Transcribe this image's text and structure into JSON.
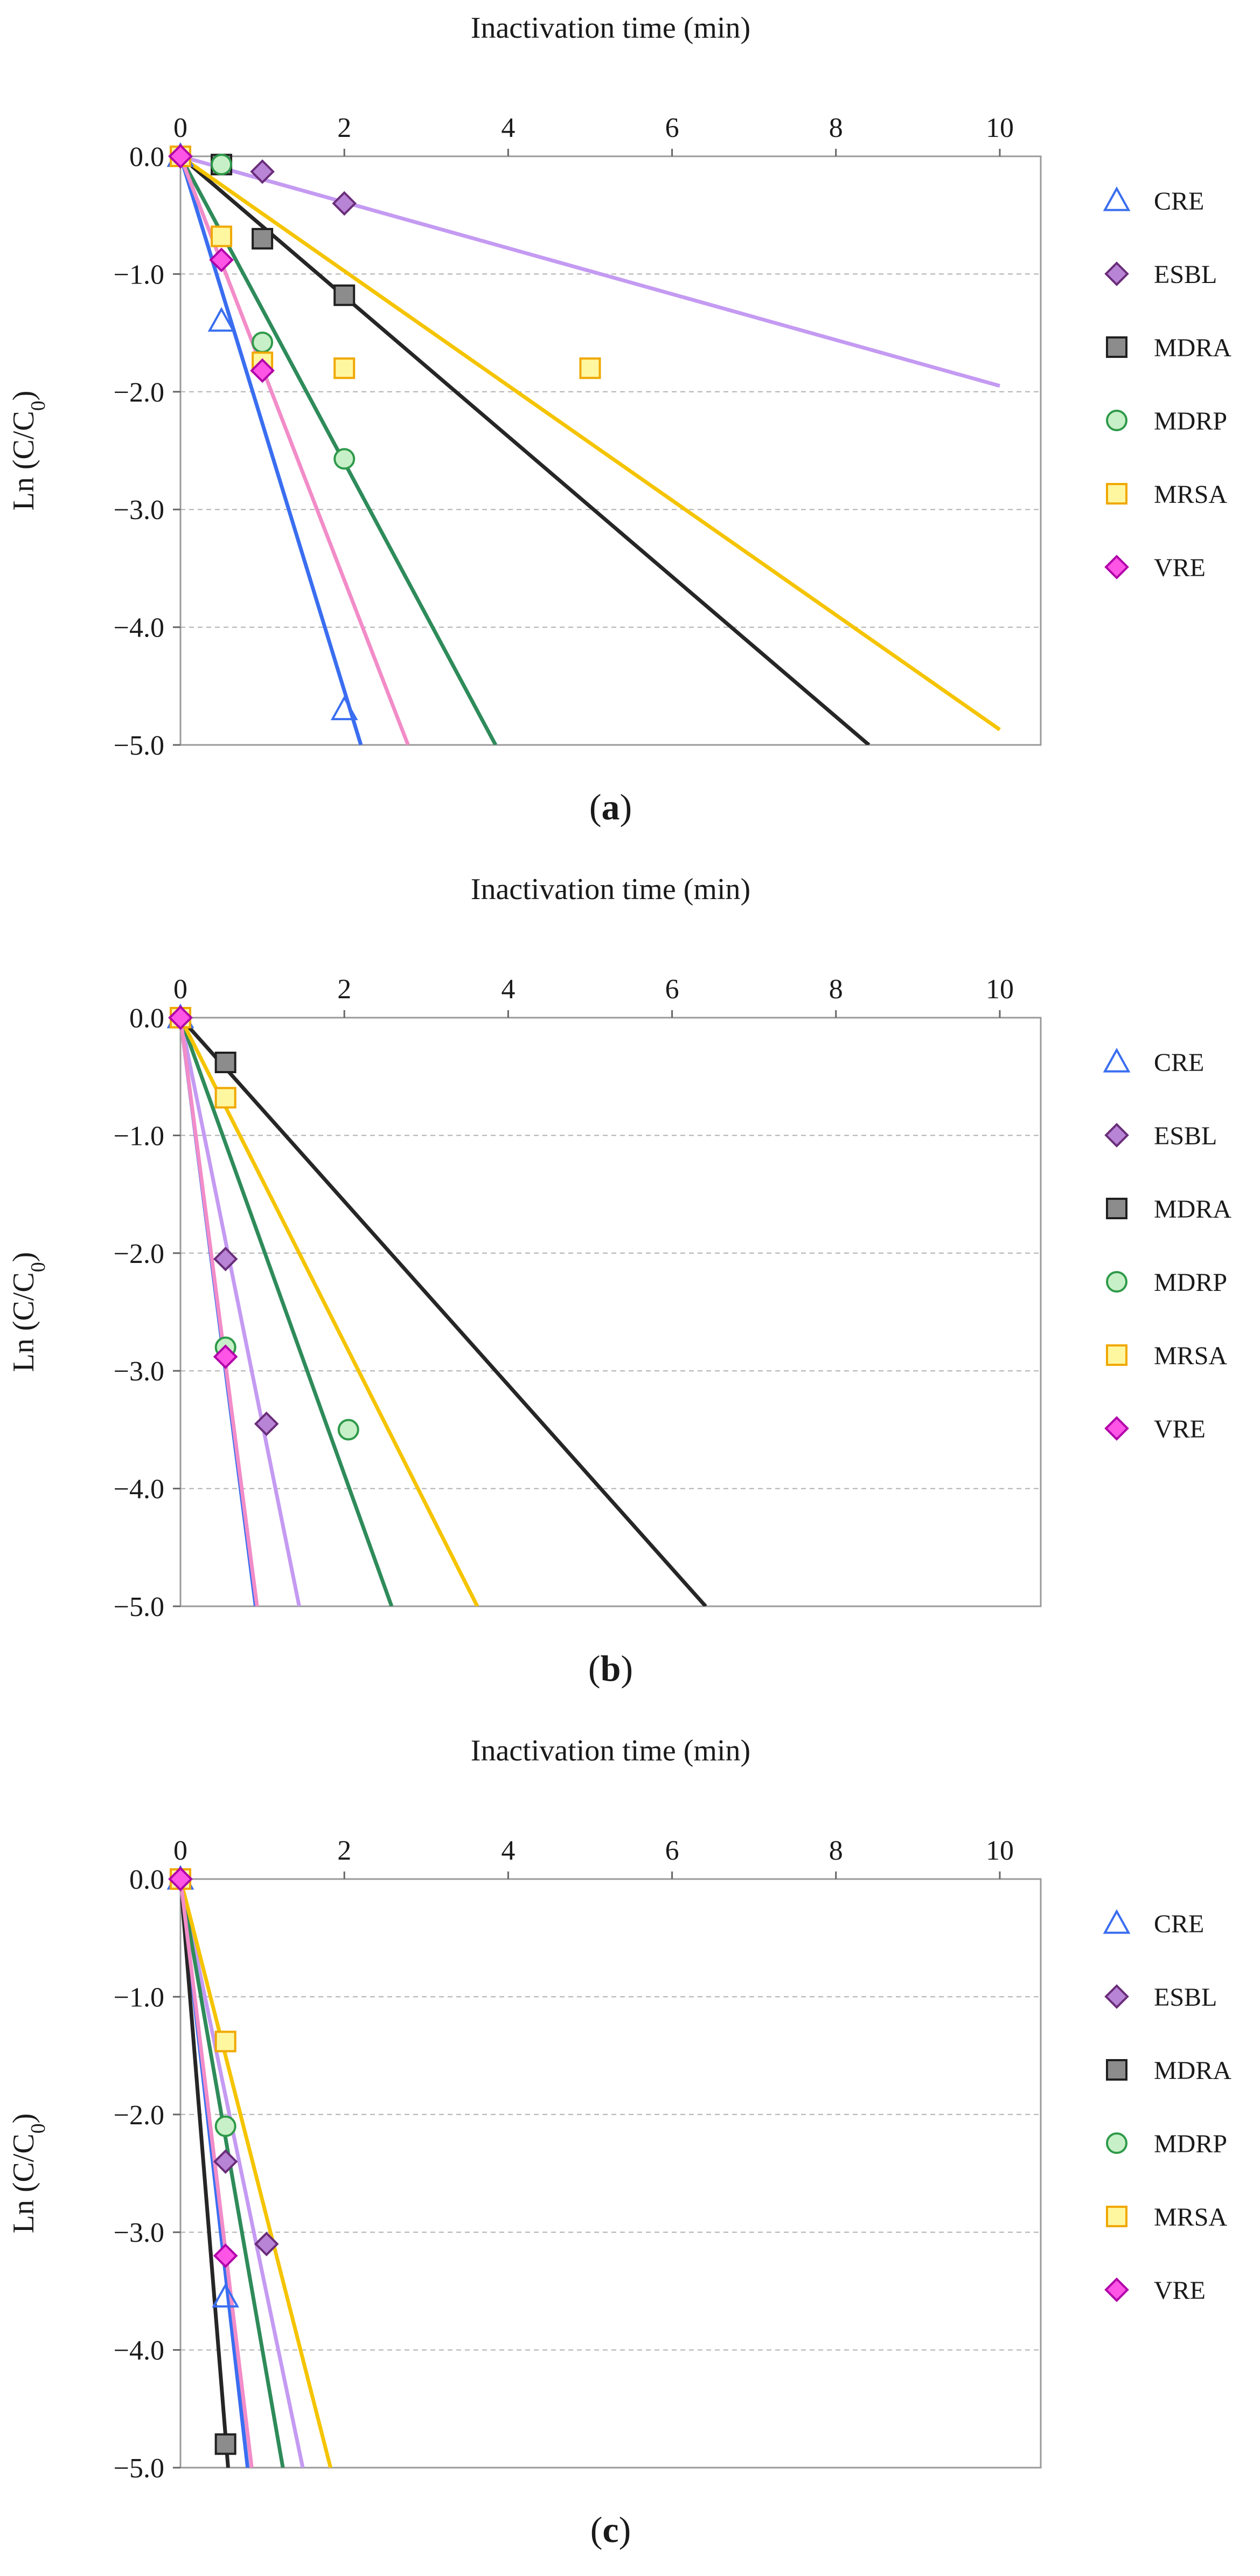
{
  "colors": {
    "CRE": "#3a6ef0",
    "ESBL": "#c49af2",
    "MDRA": "#262626",
    "MDRP": "#2e8b5a",
    "MRSA": "#f5c400",
    "VRE": "#f28cc8"
  },
  "marker_fill": {
    "CRE": "none",
    "ESBL": "#b884d6",
    "MDRA": "#8c8c8c",
    "MDRP": "#c8f0c8",
    "MRSA": "#fff7a0",
    "VRE": "#ff55e6"
  },
  "marker_stroke": {
    "CRE": "#3a6ef0",
    "ESBL": "#6a2d7a",
    "MDRA": "#202020",
    "MDRP": "#2e9a4a",
    "MRSA": "#f0a800",
    "VRE": "#b000a8"
  },
  "legend": [
    {
      "name": "CRE",
      "marker": "triangle-icon"
    },
    {
      "name": "ESBL",
      "marker": "diamond-icon"
    },
    {
      "name": "MDRA",
      "marker": "square-icon"
    },
    {
      "name": "MDRP",
      "marker": "circle-icon"
    },
    {
      "name": "MRSA",
      "marker": "square-icon"
    },
    {
      "name": "VRE",
      "marker": "diamond-icon"
    }
  ],
  "chart_data": [
    {
      "type": "scatter",
      "panel_label": [
        "(",
        "a",
        ")"
      ],
      "xlabel": "Inactivation time (min)",
      "ylabel": [
        "Ln (C/C",
        "0",
        ")"
      ],
      "xlim": [
        0,
        10.5
      ],
      "ylim": [
        -5.0,
        0.0
      ],
      "xticks": [
        0,
        2,
        4,
        6,
        8,
        10
      ],
      "xtick_labels": [
        "0",
        "2",
        "4",
        "6",
        "8",
        "10"
      ],
      "yticks": [
        0,
        -1,
        -2,
        -3,
        -4,
        -5
      ],
      "ytick_labels": [
        "0.0",
        "−1.0",
        "−2.0",
        "−3.0",
        "−4.0",
        "−5.0"
      ],
      "grid": "horizontal dashed",
      "legend_position": "right",
      "series": [
        {
          "name": "CRE",
          "points": [
            [
              0,
              0
            ],
            [
              0.5,
              -1.4
            ],
            [
              2,
              -4.7
            ]
          ],
          "fit_slope": -2.27
        },
        {
          "name": "ESBL",
          "points": [
            [
              0,
              0
            ],
            [
              1,
              -0.13
            ],
            [
              2,
              -0.4
            ]
          ],
          "fit_slope": -0.195
        },
        {
          "name": "MDRA",
          "points": [
            [
              0,
              0
            ],
            [
              0.5,
              -0.07
            ],
            [
              1,
              -0.7
            ],
            [
              2,
              -1.18
            ]
          ],
          "fit_slope": -0.595
        },
        {
          "name": "MDRP",
          "points": [
            [
              0,
              0
            ],
            [
              0.5,
              -0.07
            ],
            [
              1,
              -1.58
            ],
            [
              2,
              -2.57
            ]
          ],
          "fit_slope": -1.3
        },
        {
          "name": "MRSA",
          "points": [
            [
              0,
              0
            ],
            [
              0.5,
              -0.68
            ],
            [
              1,
              -1.75
            ],
            [
              2,
              -1.8
            ],
            [
              5,
              -1.8
            ]
          ],
          "fit_slope": -0.487
        },
        {
          "name": "VRE",
          "points": [
            [
              0,
              0
            ],
            [
              0.5,
              -0.88
            ],
            [
              1,
              -1.82
            ]
          ],
          "fit_slope": -1.8
        }
      ]
    },
    {
      "type": "scatter",
      "panel_label": [
        "(",
        "b",
        ")"
      ],
      "xlabel": "Inactivation time (min)",
      "ylabel": [
        "Ln (C/C",
        "0",
        ")"
      ],
      "xlim": [
        0,
        10.5
      ],
      "ylim": [
        -5.0,
        0.0
      ],
      "xticks": [
        0,
        2,
        4,
        6,
        8,
        10
      ],
      "xtick_labels": [
        "0",
        "2",
        "4",
        "6",
        "8",
        "10"
      ],
      "yticks": [
        0,
        -1,
        -2,
        -3,
        -4,
        -5
      ],
      "ytick_labels": [
        "0.0",
        "−1.0",
        "−2.0",
        "−3.0",
        "−4.0",
        "−5.0"
      ],
      "grid": "horizontal dashed",
      "legend_position": "right",
      "series": [
        {
          "name": "CRE",
          "points": [
            [
              0,
              0
            ]
          ],
          "fit_slope": -5.45
        },
        {
          "name": "ESBL",
          "points": [
            [
              0,
              0
            ],
            [
              0.55,
              -2.05
            ],
            [
              1.05,
              -3.45
            ]
          ],
          "fit_slope": -3.45
        },
        {
          "name": "MDRA",
          "points": [
            [
              0,
              0
            ],
            [
              0.55,
              -0.38
            ]
          ],
          "fit_slope": -0.78
        },
        {
          "name": "MDRP",
          "points": [
            [
              0,
              0
            ],
            [
              0.55,
              -2.8
            ],
            [
              2.05,
              -3.5
            ]
          ],
          "fit_slope": -1.94
        },
        {
          "name": "MRSA",
          "points": [
            [
              0,
              0
            ],
            [
              0.55,
              -0.68
            ]
          ],
          "fit_slope": -1.38
        },
        {
          "name": "VRE",
          "points": [
            [
              0,
              0
            ],
            [
              0.55,
              -2.88
            ]
          ],
          "fit_slope": -5.35
        }
      ]
    },
    {
      "type": "scatter",
      "panel_label": [
        "(",
        "c",
        ")"
      ],
      "xlabel": "Inactivation time (min)",
      "ylabel": [
        "Ln (C/C",
        "0",
        ")"
      ],
      "xlim": [
        0,
        10.5
      ],
      "ylim": [
        -5.0,
        0.0
      ],
      "xticks": [
        0,
        2,
        4,
        6,
        8,
        10
      ],
      "xtick_labels": [
        "0",
        "2",
        "4",
        "6",
        "8",
        "10"
      ],
      "yticks": [
        0,
        -1,
        -2,
        -3,
        -4,
        -5
      ],
      "ytick_labels": [
        "0.0",
        "−1.0",
        "−2.0",
        "−3.0",
        "−4.0",
        "−5.0"
      ],
      "grid": "horizontal dashed",
      "legend_position": "right",
      "series": [
        {
          "name": "CRE",
          "points": [
            [
              0,
              0
            ],
            [
              0.55,
              -3.55
            ]
          ],
          "fit_slope": -6.1
        },
        {
          "name": "ESBL",
          "points": [
            [
              0,
              0
            ],
            [
              0.55,
              -2.4
            ],
            [
              1.05,
              -3.1
            ]
          ],
          "fit_slope": -3.35
        },
        {
          "name": "MDRA",
          "points": [
            [
              0,
              0
            ],
            [
              0.55,
              -4.8
            ]
          ],
          "fit_slope": -8.6
        },
        {
          "name": "MDRP",
          "points": [
            [
              0,
              0
            ],
            [
              0.55,
              -2.1
            ]
          ],
          "fit_slope": -4.0
        },
        {
          "name": "MRSA",
          "points": [
            [
              0,
              0
            ],
            [
              0.55,
              -1.38
            ]
          ],
          "fit_slope": -2.73
        },
        {
          "name": "VRE",
          "points": [
            [
              0,
              0
            ],
            [
              0.55,
              -3.2
            ]
          ],
          "fit_slope": -5.75
        }
      ]
    }
  ]
}
